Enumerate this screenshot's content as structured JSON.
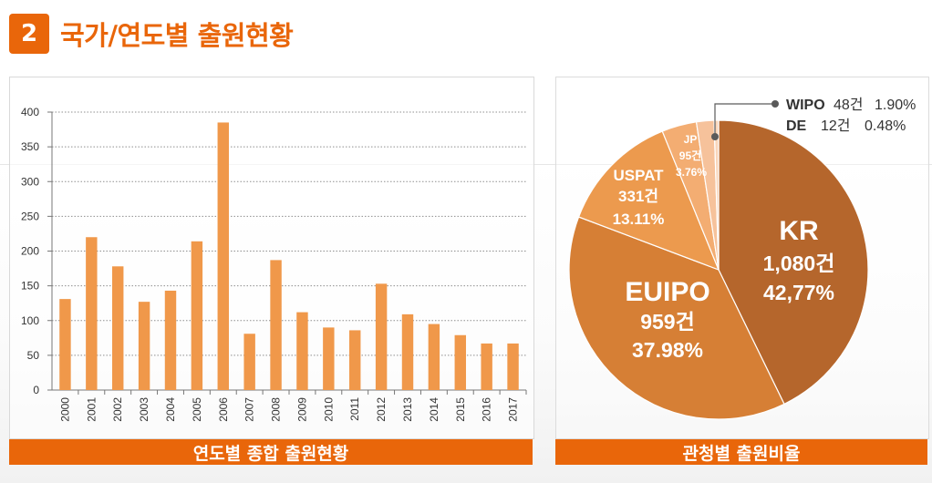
{
  "header": {
    "number": "2",
    "title": "국가/연도별 출원현황"
  },
  "footers": {
    "left": "연도별 종합 출원현황",
    "right": "관청별 출원비율"
  },
  "colors": {
    "accent": "#e9660a",
    "bar": "#f0984a"
  },
  "chart_data": [
    {
      "type": "bar",
      "categories": [
        "2000",
        "2001",
        "2002",
        "2003",
        "2004",
        "2005",
        "2006",
        "2007",
        "2008",
        "2009",
        "2010",
        "2011",
        "2012",
        "2013",
        "2014",
        "2015",
        "2016",
        "2017"
      ],
      "values": [
        131,
        220,
        178,
        127,
        143,
        214,
        385,
        81,
        187,
        112,
        90,
        86,
        153,
        109,
        95,
        79,
        67,
        67
      ],
      "y_ticks": [
        "0",
        "50",
        "100",
        "150",
        "200",
        "250",
        "300",
        "350",
        "400"
      ],
      "ylim": [
        0,
        400
      ],
      "grid": true
    },
    {
      "type": "pie",
      "slices": [
        {
          "label": "KR",
          "count": "1,080건",
          "pct": "42,77%",
          "value": 42.77,
          "color": "#b5662c"
        },
        {
          "label": "EUIPO",
          "count": "959건",
          "pct": "37.98%",
          "value": 37.98,
          "color": "#d67f35"
        },
        {
          "label": "USPAT",
          "count": "331건",
          "pct": "13.11%",
          "value": 13.11,
          "color": "#ec9a4e"
        },
        {
          "label": "JP",
          "count": "95건",
          "pct": "3.76%",
          "value": 3.76,
          "color": "#f3ad72"
        },
        {
          "label": "WIPO",
          "count": "48건",
          "pct": "1.90%",
          "value": 1.9,
          "color": "#f6c29b"
        },
        {
          "label": "DE",
          "count": "12건",
          "pct": "0.48%",
          "value": 0.48,
          "color": "#f9d6ba"
        }
      ]
    }
  ]
}
